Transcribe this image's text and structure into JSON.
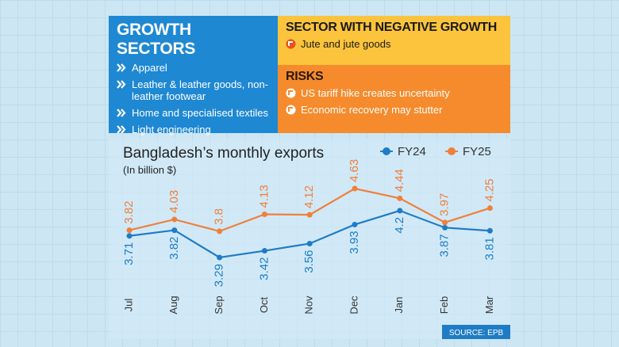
{
  "infographic": {
    "growth": {
      "title": "GROWTH SECTORS",
      "items": [
        "Apparel",
        "Leather & leather goods, non-leather footwear",
        "Home and specialised textiles",
        "Light engineering"
      ]
    },
    "negative": {
      "title": "SECTOR WITH NEGATIVE GROWTH",
      "items": [
        "Jute and jute goods"
      ]
    },
    "risks": {
      "title": "RISKS",
      "items": [
        "US tariff hike creates uncertainty",
        "Economic recovery may stutter"
      ]
    }
  },
  "chart_data": {
    "type": "line",
    "title": "Bangladesh’s monthly exports",
    "subtitle": "(In billion $)",
    "categories": [
      "Jul",
      "Aug",
      "Sep",
      "Oct",
      "Nov",
      "Dec",
      "Jan",
      "Feb",
      "Mar"
    ],
    "series": [
      {
        "name": "FY24",
        "color": "#1f7cc4",
        "values": [
          3.71,
          3.82,
          3.29,
          3.42,
          3.56,
          3.93,
          4.2,
          3.87,
          3.81
        ]
      },
      {
        "name": "FY25",
        "color": "#f07f3c",
        "values": [
          3.82,
          4.03,
          3.8,
          4.13,
          4.12,
          4.63,
          4.44,
          3.97,
          4.25
        ]
      }
    ],
    "source": "SOURCE: EPB"
  }
}
